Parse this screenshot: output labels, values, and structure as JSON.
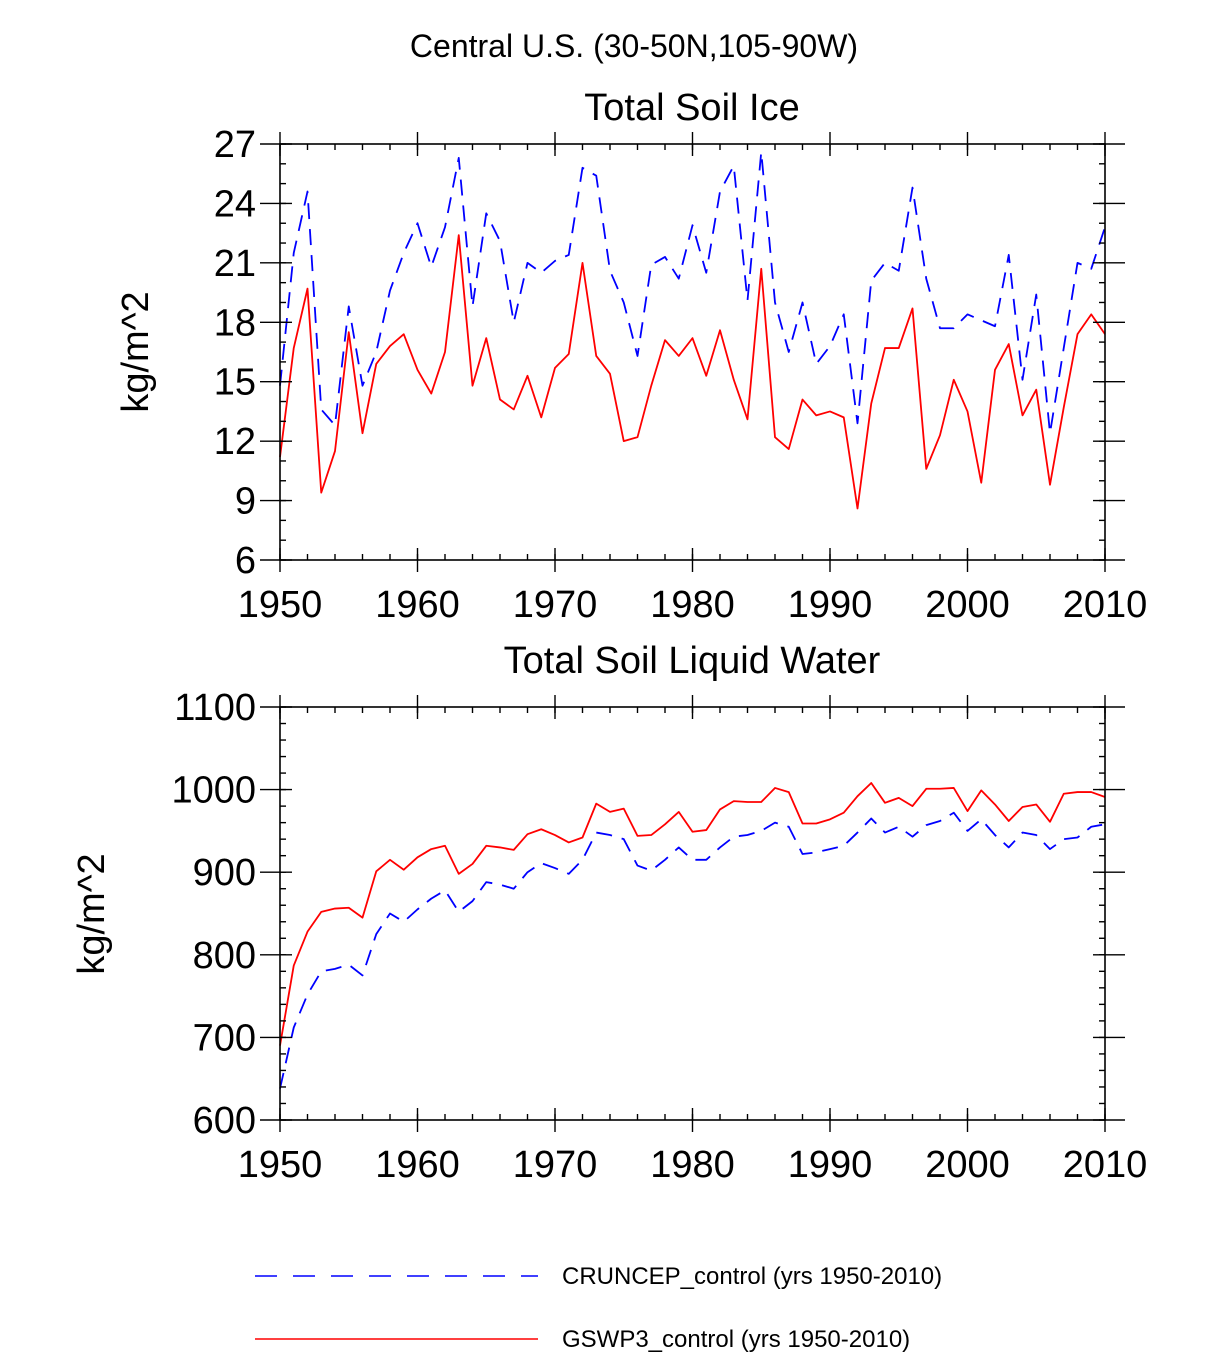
{
  "figure_title": "Central U.S. (30-50N,105-90W)",
  "legend": [
    {
      "label": "CRUNCEP_control (yrs 1950-2010)",
      "color": "#0000ff",
      "dash": "dashed"
    },
    {
      "label": "GSWP3_control (yrs 1950-2010)",
      "color": "#ff0000",
      "dash": "solid"
    }
  ],
  "chart_data": [
    {
      "type": "line",
      "title": "Total Soil Ice",
      "xlabel": "",
      "ylabel": "kg/m^2",
      "xlim": [
        1950,
        2010
      ],
      "ylim": [
        6,
        27
      ],
      "xticks": [
        1950,
        1960,
        1970,
        1980,
        1990,
        2000,
        2010
      ],
      "xtick_labels": [
        "1950",
        "1960",
        "1970",
        "1980",
        "1990",
        "2000",
        "2010"
      ],
      "yticks": [
        6,
        9,
        12,
        15,
        18,
        21,
        24,
        27
      ],
      "ytick_labels": [
        "6",
        "9",
        "12",
        "15",
        "18",
        "21",
        "24",
        "27"
      ],
      "grid": false,
      "x": [
        1950,
        1951,
        1952,
        1953,
        1954,
        1955,
        1956,
        1957,
        1958,
        1959,
        1960,
        1961,
        1962,
        1963,
        1964,
        1965,
        1966,
        1967,
        1968,
        1969,
        1970,
        1971,
        1972,
        1973,
        1974,
        1975,
        1976,
        1977,
        1978,
        1979,
        1980,
        1981,
        1982,
        1983,
        1984,
        1985,
        1986,
        1987,
        1988,
        1989,
        1990,
        1991,
        1992,
        1993,
        1994,
        1995,
        1996,
        1997,
        1998,
        1999,
        2000,
        2001,
        2002,
        2003,
        2004,
        2005,
        2006,
        2007,
        2008,
        2009,
        2010
      ],
      "series": [
        {
          "name": "CRUNCEP_control (yrs 1950-2010)",
          "color": "#0000ff",
          "dash": "dashed",
          "values": [
            14.8,
            21.5,
            24.6,
            13.6,
            12.8,
            18.8,
            14.8,
            16.5,
            19.6,
            21.5,
            23.0,
            20.8,
            22.8,
            26.3,
            18.8,
            23.5,
            22.1,
            18.0,
            21.0,
            20.5,
            21.1,
            21.4,
            25.8,
            25.4,
            20.6,
            19.0,
            16.3,
            20.9,
            21.3,
            20.2,
            22.9,
            20.5,
            24.6,
            25.9,
            19.1,
            26.6,
            19.0,
            16.5,
            19.0,
            15.9,
            16.8,
            18.4,
            12.9,
            20.1,
            21.0,
            20.6,
            24.8,
            20.2,
            17.7,
            17.7,
            18.4,
            18.1,
            17.8,
            21.4,
            15.1,
            19.4,
            12.4,
            16.7,
            21.0,
            20.7,
            22.8
          ]
        },
        {
          "name": "GSWP3_control (yrs 1950-2010)",
          "color": "#ff0000",
          "dash": "solid",
          "values": [
            11.2,
            16.7,
            19.7,
            9.4,
            11.5,
            17.5,
            12.4,
            15.9,
            16.8,
            17.4,
            15.6,
            14.4,
            16.5,
            22.4,
            14.8,
            17.2,
            14.1,
            13.6,
            15.3,
            13.2,
            15.7,
            16.4,
            21.0,
            16.3,
            15.4,
            12.0,
            12.2,
            14.8,
            17.1,
            16.3,
            17.2,
            15.3,
            17.6,
            15.1,
            13.1,
            20.7,
            12.2,
            11.6,
            14.1,
            13.3,
            13.5,
            13.2,
            8.6,
            13.9,
            16.7,
            16.7,
            18.7,
            10.6,
            12.3,
            15.1,
            13.5,
            9.9,
            15.6,
            16.9,
            13.3,
            14.6,
            9.8,
            13.7,
            17.4,
            18.4,
            17.4
          ]
        }
      ]
    },
    {
      "type": "line",
      "title": "Total Soil Liquid Water",
      "xlabel": "",
      "ylabel": "kg/m^2",
      "xlim": [
        1950,
        2010
      ],
      "ylim": [
        600,
        1100
      ],
      "xticks": [
        1950,
        1960,
        1970,
        1980,
        1990,
        2000,
        2010
      ],
      "xtick_labels": [
        "1950",
        "1960",
        "1970",
        "1980",
        "1990",
        "2000",
        "2010"
      ],
      "yticks": [
        600,
        700,
        800,
        900,
        1000,
        1100
      ],
      "ytick_labels": [
        "600",
        "700",
        "800",
        "900",
        "1000",
        "1100"
      ],
      "grid": false,
      "x": [
        1950,
        1951,
        1952,
        1953,
        1954,
        1955,
        1956,
        1957,
        1958,
        1959,
        1960,
        1961,
        1962,
        1963,
        1964,
        1965,
        1966,
        1967,
        1968,
        1969,
        1970,
        1971,
        1972,
        1973,
        1974,
        1975,
        1976,
        1977,
        1978,
        1979,
        1980,
        1981,
        1982,
        1983,
        1984,
        1985,
        1986,
        1987,
        1988,
        1989,
        1990,
        1991,
        1992,
        1993,
        1994,
        1995,
        1996,
        1997,
        1998,
        1999,
        2000,
        2001,
        2002,
        2003,
        2004,
        2005,
        2006,
        2007,
        2008,
        2009,
        2010
      ],
      "series": [
        {
          "name": "CRUNCEP_control (yrs 1950-2010)",
          "color": "#0000ff",
          "dash": "dashed",
          "values": [
            638,
            712,
            752,
            780,
            783,
            788,
            775,
            825,
            850,
            840,
            855,
            868,
            878,
            852,
            865,
            888,
            885,
            880,
            900,
            911,
            905,
            898,
            915,
            948,
            945,
            940,
            908,
            902,
            915,
            930,
            915,
            915,
            930,
            943,
            945,
            950,
            960,
            955,
            922,
            924,
            928,
            932,
            948,
            965,
            948,
            955,
            943,
            957,
            962,
            972,
            950,
            964,
            945,
            930,
            948,
            945,
            928,
            940,
            942,
            955,
            958
          ]
        },
        {
          "name": "GSWP3_control (yrs 1950-2010)",
          "color": "#ff0000",
          "dash": "solid",
          "values": [
            690,
            787,
            828,
            852,
            856,
            857,
            845,
            901,
            915,
            903,
            918,
            928,
            932,
            898,
            910,
            932,
            930,
            927,
            946,
            952,
            945,
            936,
            942,
            983,
            973,
            977,
            944,
            945,
            958,
            973,
            949,
            951,
            976,
            986,
            985,
            985,
            1002,
            997,
            959,
            959,
            964,
            972,
            992,
            1008,
            984,
            990,
            980,
            1001,
            1001,
            1002,
            974,
            999,
            982,
            962,
            979,
            982,
            961,
            995,
            997,
            997,
            991
          ]
        }
      ]
    }
  ]
}
